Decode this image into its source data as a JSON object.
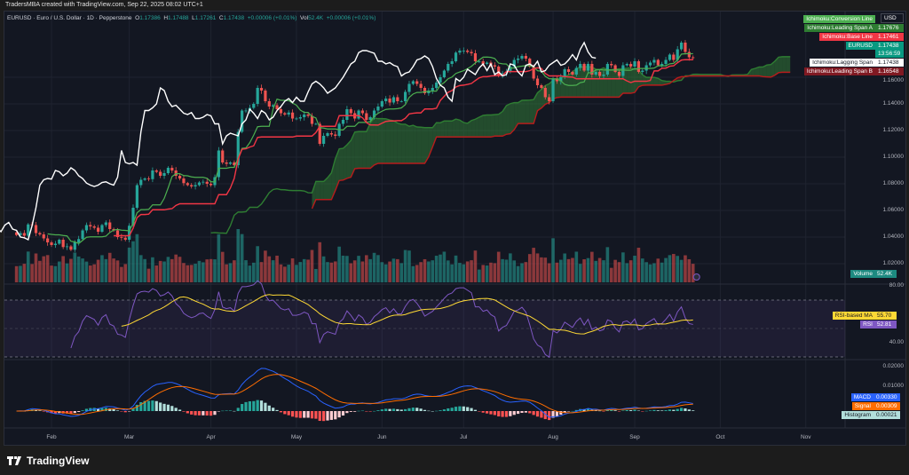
{
  "header": {
    "attribution": "TradersMBA created with TradingView.com, Sep 22, 2025 08:02 UTC+1"
  },
  "legend": {
    "symbol": "EURUSD · Euro / U.S. Dollar · 1D · Pepperstone",
    "o_label": "O",
    "o": "1.17386",
    "h_label": "H",
    "h": "1.17488",
    "l_label": "L",
    "l": "1.17261",
    "c_label": "C",
    "c": "1.17438",
    "change": "+0.00006 (+0.01%)",
    "vol_label": "Vol",
    "vol": "52.4K",
    "vol_change": "+0.00006 (+0.01%)"
  },
  "right_labels": {
    "currency": "USD",
    "conversion": "Ichimoku:Conversion Line",
    "span_a": "Ichimoku:Leading Span A",
    "span_a_value": "1.17676",
    "base": "Ichimoku:Base Line",
    "base_value": "1.17461",
    "symbol": "EURUSD",
    "price": "1.17438",
    "countdown": "13:56:59",
    "lagging": "Ichimoku:Lagging Span",
    "lagging_value": "1.17438",
    "span_b": "Ichimoku:Leading Span B",
    "span_b_value": "1.16548",
    "volume": "Volume",
    "volume_value": "52.4K",
    "rsi_ma": "RSI-based MA",
    "rsi_ma_value": "55.70",
    "rsi": "RSI",
    "rsi_value": "52.81",
    "macd": "MACD",
    "macd_value": "0.00330",
    "signal": "Signal",
    "signal_value": "0.00309",
    "histogram": "Histogram",
    "histogram_value": "0.00021"
  },
  "footer": {
    "brand": "TradingView"
  },
  "colors": {
    "up": "#26a69a",
    "down": "#ef5350",
    "conversion": "#4caf50",
    "base": "#f23645",
    "lagging": "#ffffff",
    "cloud_up": "#388e3c",
    "cloud_down": "#b71c1c",
    "rsi": "#7e57c2",
    "rsi_ma": "#fdd835",
    "macd": "#2962ff",
    "signal": "#ff6d00"
  },
  "chart_data": {
    "type": "candlestick",
    "symbol": "EURUSD",
    "timeframe": "1D",
    "price_axis": {
      "ticks": [
        "1.16000",
        "1.14000",
        "1.12000",
        "1.10000",
        "1.08000",
        "1.06000",
        "1.04000",
        "1.02000"
      ],
      "range": [
        1.02,
        1.16
      ]
    },
    "rsi_axis": {
      "ticks": [
        "80.00",
        "40.00"
      ]
    },
    "macd_axis": {
      "ticks": [
        "0.02000",
        "0.01000"
      ]
    },
    "time_axis": [
      "Feb",
      "Mar",
      "Apr",
      "May",
      "Jun",
      "Jul",
      "Aug",
      "Sep",
      "Oct",
      "Nov"
    ],
    "indicators": [
      "Ichimoku Cloud",
      "Volume",
      "RSI 14",
      "MACD 12 26 9"
    ],
    "closes": [
      1.0415,
      1.043,
      1.041,
      1.0495,
      1.049,
      1.043,
      1.042,
      1.039,
      1.036,
      1.034,
      1.035,
      1.038,
      1.0325,
      1.033,
      1.0305,
      1.036,
      1.0385,
      1.045,
      1.049,
      1.048,
      1.047,
      1.044,
      1.049,
      1.051,
      1.046,
      1.045,
      1.04,
      1.0395,
      1.038,
      1.0485,
      1.062,
      1.079,
      1.083,
      1.084,
      1.0835,
      1.09,
      1.089,
      1.086,
      1.088,
      1.092,
      1.09,
      1.086,
      1.084,
      1.0805,
      1.079,
      1.078,
      1.079,
      1.081,
      1.0815,
      1.08,
      1.079,
      1.085,
      1.105,
      1.096,
      1.095,
      1.096,
      1.094,
      1.119,
      1.135,
      1.135,
      1.137,
      1.14,
      1.152,
      1.15,
      1.142,
      1.138,
      1.139,
      1.136,
      1.133,
      1.132,
      1.1335,
      1.129,
      1.129,
      1.13,
      1.132,
      1.131,
      1.125,
      1.125,
      1.11,
      1.116,
      1.118,
      1.117,
      1.116,
      1.125,
      1.128,
      1.136,
      1.133,
      1.129,
      1.135,
      1.133,
      1.128,
      1.13,
      1.135,
      1.138,
      1.142,
      1.144,
      1.141,
      1.145,
      1.142,
      1.142,
      1.149,
      1.155,
      1.157,
      1.155,
      1.152,
      1.148,
      1.15,
      1.152,
      1.156,
      1.16,
      1.165,
      1.17,
      1.172,
      1.1785,
      1.18,
      1.18,
      1.179,
      1.178,
      1.172,
      1.172,
      1.17,
      1.171,
      1.169,
      1.168,
      1.161,
      1.163,
      1.164,
      1.168,
      1.173,
      1.174,
      1.176,
      1.174,
      1.168,
      1.159,
      1.154,
      1.152,
      1.145,
      1.142,
      1.159,
      1.157,
      1.16,
      1.166,
      1.164,
      1.162,
      1.167,
      1.17,
      1.165,
      1.17,
      1.162,
      1.164,
      1.161,
      1.162,
      1.17,
      1.169,
      1.164,
      1.161,
      1.169,
      1.17,
      1.168,
      1.172,
      1.164,
      1.165,
      1.169,
      1.171,
      1.173,
      1.169,
      1.17,
      1.173,
      1.177,
      1.173,
      1.181,
      1.186,
      1.179,
      1.175,
      1.17438
    ]
  }
}
